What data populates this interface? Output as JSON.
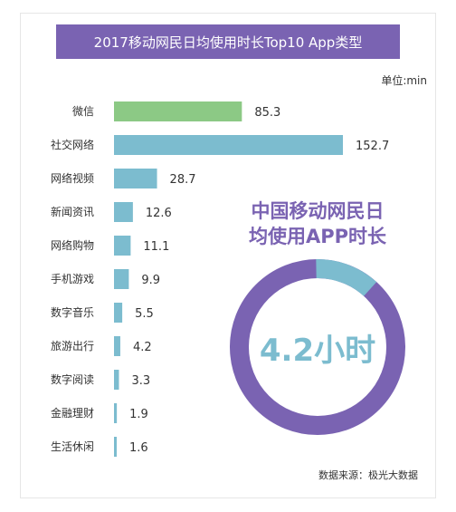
{
  "title": "2017移动网民日均使用时长Top10 App类型",
  "unit_label": "单位:min",
  "source": "数据来源：极光大数据",
  "colors": {
    "title_bg": "#7a63b2",
    "highlight_bar": "#8cc985",
    "bar": "#7cbccf",
    "donut_main": "#7a63b2",
    "donut_slice": "#7cbccf",
    "callout_title": "#7a63b2",
    "callout_value": "#7cbccf"
  },
  "callout": {
    "line1": "中国移动网民日",
    "line2": "均使用APP时长",
    "value": "4.2小时"
  },
  "chart_data": {
    "type": "bar",
    "orientation": "horizontal",
    "categories": [
      "微信",
      "社交网络",
      "网络视频",
      "新闻资讯",
      "网络购物",
      "手机游戏",
      "数字音乐",
      "旅游出行",
      "数字阅读",
      "金融理财",
      "生活休闲"
    ],
    "values": [
      85.3,
      152.7,
      28.7,
      12.6,
      11.1,
      9.9,
      5.5,
      4.2,
      3.3,
      1.9,
      1.6
    ],
    "highlight_index": 0
  },
  "donut_data": {
    "type": "pie",
    "slice_fraction": 0.12
  }
}
